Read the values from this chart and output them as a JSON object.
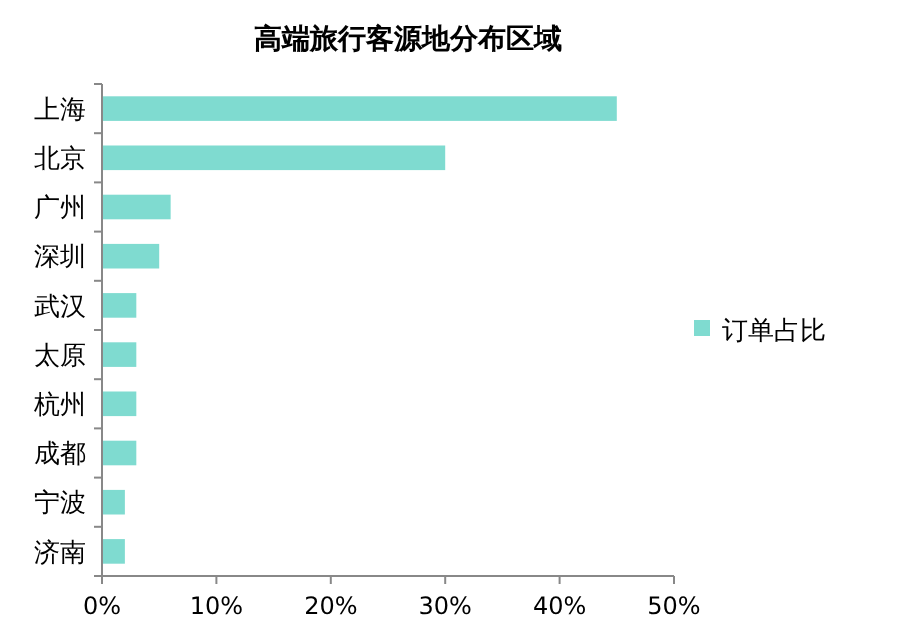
{
  "chart_data": {
    "type": "bar",
    "orientation": "horizontal",
    "title": "高端旅行客源地分布区域",
    "categories": [
      "上海",
      "北京",
      "广州",
      "深圳",
      "武汉",
      "太原",
      "杭州",
      "成都",
      "宁波",
      "济南"
    ],
    "series": [
      {
        "name": "订单占比",
        "color": "#7fdbd0",
        "values": [
          45,
          30,
          6,
          5,
          3,
          3,
          3,
          3,
          2,
          2
        ]
      }
    ],
    "xlim": [
      0,
      50
    ],
    "xticks": [
      {
        "value": 0,
        "label": "0%"
      },
      {
        "value": 10,
        "label": "10%"
      },
      {
        "value": 20,
        "label": "20%"
      },
      {
        "value": 30,
        "label": "30%"
      },
      {
        "value": 40,
        "label": "40%"
      },
      {
        "value": 50,
        "label": "50%"
      }
    ],
    "grid": false,
    "legend": "right"
  }
}
